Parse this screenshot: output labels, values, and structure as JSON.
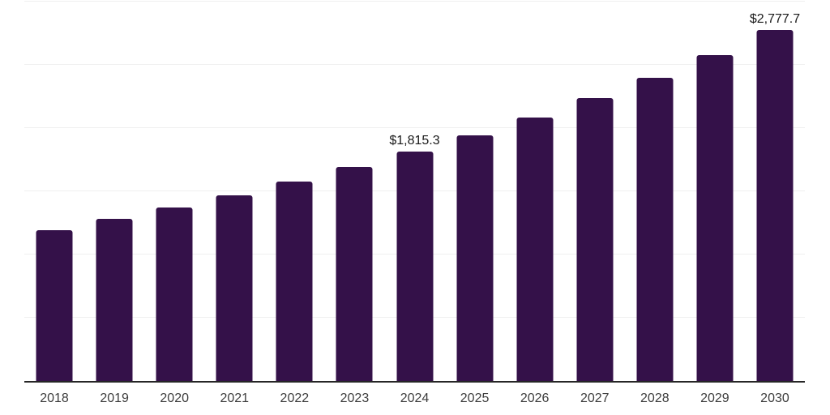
{
  "chart_data": {
    "type": "bar",
    "title": "",
    "xlabel": "",
    "ylabel": "",
    "categories": [
      "2018",
      "2019",
      "2020",
      "2021",
      "2022",
      "2023",
      "2024",
      "2025",
      "2026",
      "2027",
      "2028",
      "2029",
      "2030"
    ],
    "values": [
      1190,
      1283,
      1372,
      1467,
      1580,
      1695,
      1815.3,
      1944,
      2085,
      2240,
      2400,
      2578,
      2777.7
    ],
    "labeled_points": [
      {
        "category": "2024",
        "label": "$1,815.3"
      },
      {
        "category": "2030",
        "label": "$2,777.7"
      }
    ],
    "ylim": [
      0,
      3000
    ],
    "gridline_values": [
      500,
      1000,
      1500,
      2000,
      2500,
      3000
    ],
    "grid": "horizontal-only",
    "legend": "none",
    "y_axis_tick_labels": "none"
  },
  "colors": {
    "bar": "#341149",
    "axis_line": "#262626",
    "gridline": "#f0f0f0",
    "data_label_text": "#1a1a1a",
    "tick_label_text": "#3d3d3d",
    "background": "#ffffff"
  }
}
